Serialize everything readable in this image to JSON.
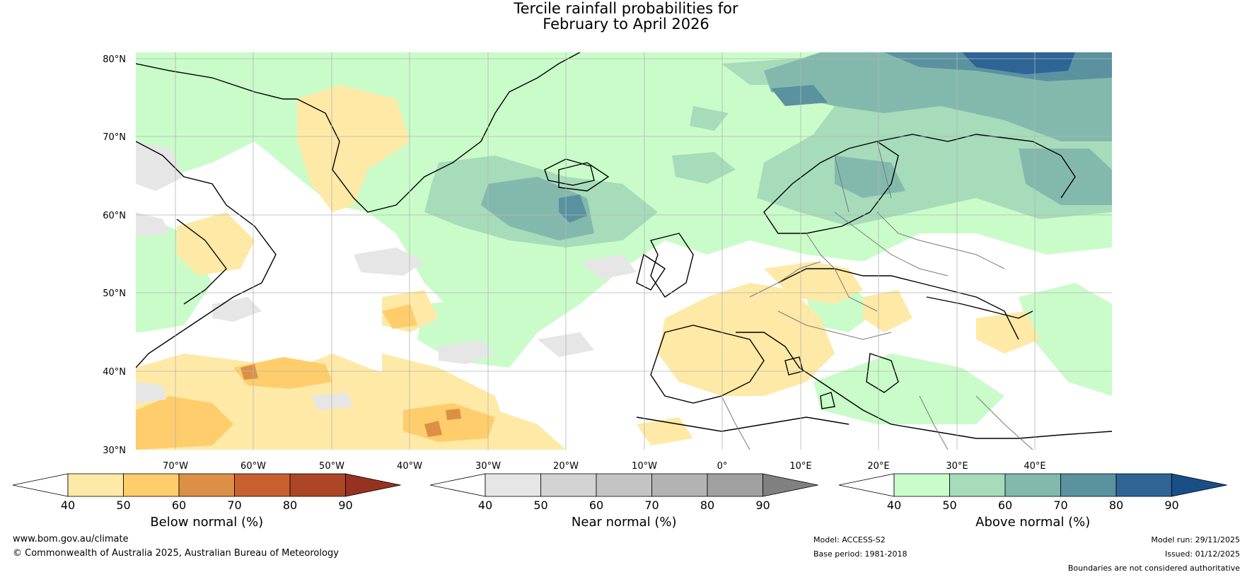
{
  "title": {
    "line1": "Tercile rainfall probabilities for",
    "line2": "February to April 2026"
  },
  "map": {
    "lat_labels": [
      "80°N",
      "70°N",
      "60°N",
      "50°N",
      "40°N",
      "30°N"
    ],
    "lon_labels": [
      "70°W",
      "60°W",
      "50°W",
      "40°W",
      "30°W",
      "20°W",
      "10°W",
      "0°",
      "10°E",
      "20°E",
      "30°E",
      "40°E"
    ],
    "lat_range": [
      30,
      81
    ],
    "lon_range": [
      -80.5,
      44.5
    ]
  },
  "colorbars": [
    {
      "id": "below",
      "title": "Below normal (%)",
      "ticks": [
        "40",
        "50",
        "60",
        "70",
        "80",
        "90"
      ],
      "colors": [
        "#ffffff",
        "#ffe9a6",
        "#ffcd6b",
        "#dc9046",
        "#c9602f",
        "#ad4527",
        "#963221"
      ]
    },
    {
      "id": "near",
      "title": "Near normal (%)",
      "ticks": [
        "40",
        "50",
        "60",
        "70",
        "80",
        "90"
      ],
      "colors": [
        "#ffffff",
        "#e6e6e6",
        "#d3d3d3",
        "#c4c4c4",
        "#b3b3b3",
        "#a0a0a0",
        "#808080"
      ]
    },
    {
      "id": "above",
      "title": "Above normal (%)",
      "ticks": [
        "40",
        "50",
        "60",
        "70",
        "80",
        "90"
      ],
      "colors": [
        "#ffffff",
        "#c9fcc9",
        "#a6dcb9",
        "#83b9ad",
        "#5a92a0",
        "#2f6496",
        "#184f87"
      ]
    }
  ],
  "footer": {
    "website": "www.bom.gov.au/climate",
    "copyright": "© Commonwealth of Australia 2025, Australian Bureau of Meteorology",
    "model": "Model: ACCESS-S2",
    "base_period": "Base period: 1981-2018",
    "model_run": "Model run: 29/11/2025",
    "issued": "Issued: 01/12/2025",
    "disclaimer": "Boundaries are not considered authoritative"
  }
}
